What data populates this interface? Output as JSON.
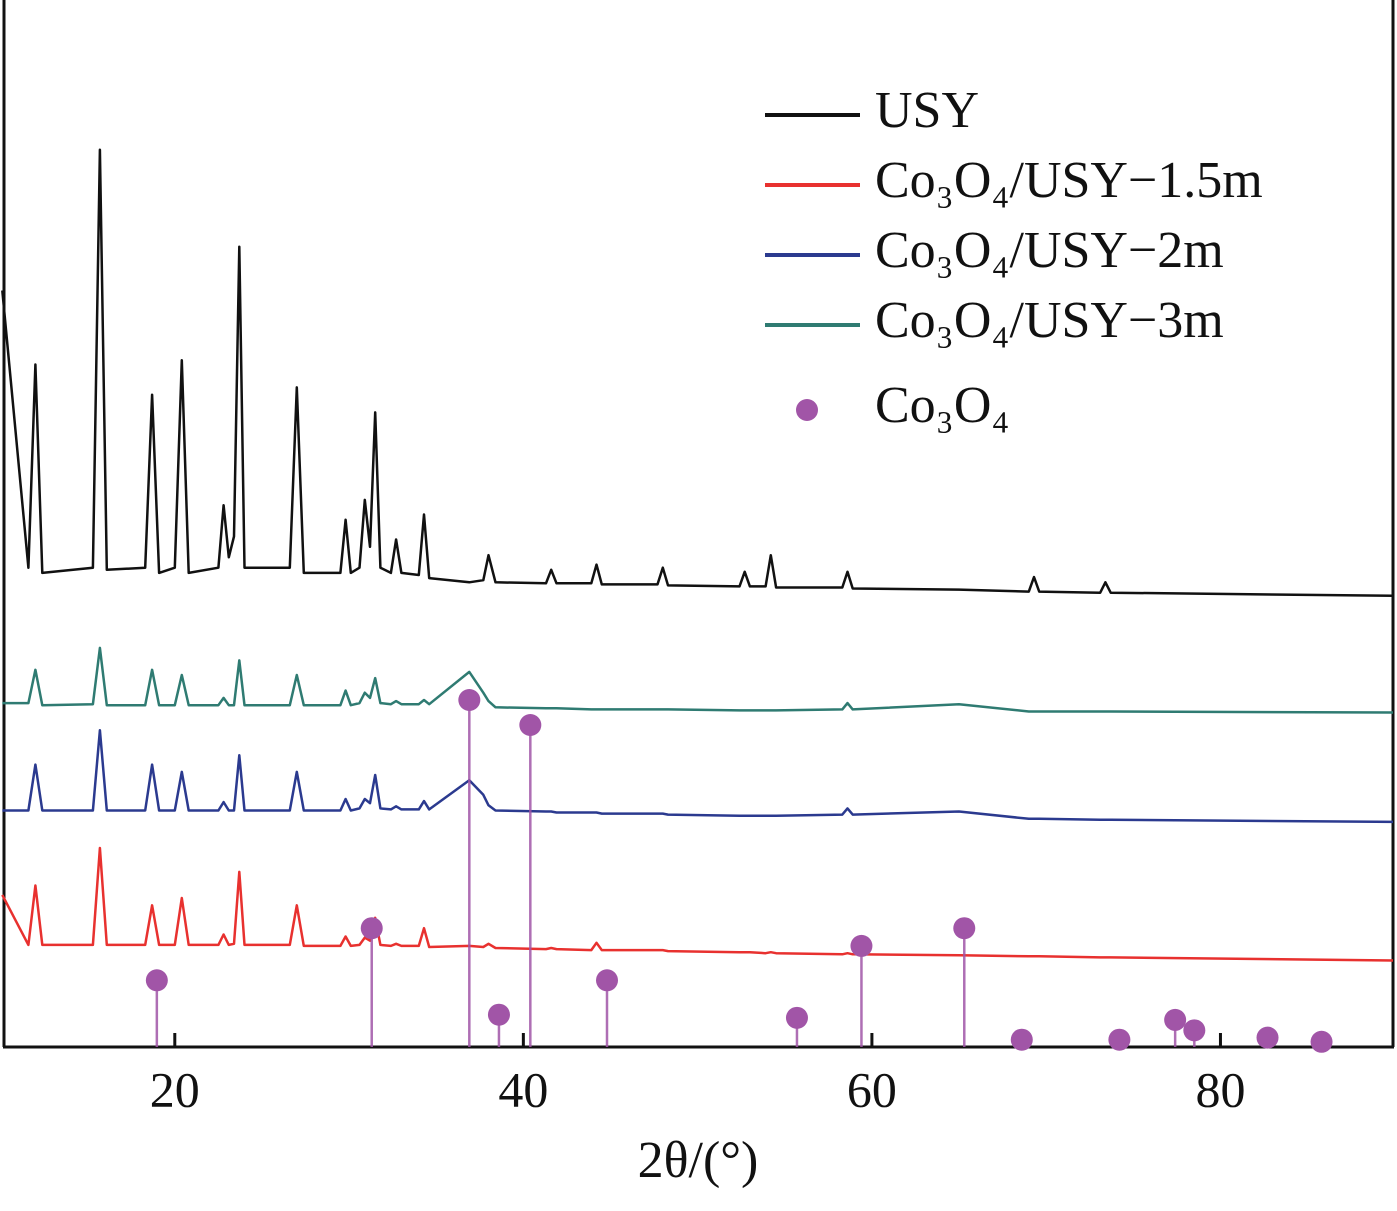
{
  "chart_data": {
    "type": "line",
    "x_label": "2θ/(°)",
    "xlim": [
      10.2,
      89.9
    ],
    "ylim": [
      0,
      100
    ],
    "xticks": [
      20,
      40,
      60,
      80
    ],
    "legend": "top-right",
    "x": [
      10.1,
      11.6,
      12.0,
      12.4,
      15.3,
      15.7,
      16.1,
      18.3,
      18.7,
      19.1,
      20.0,
      20.4,
      20.8,
      22.5,
      22.8,
      23.1,
      23.4,
      23.7,
      24.0,
      26.6,
      27.0,
      27.4,
      29.5,
      29.8,
      30.1,
      30.6,
      30.9,
      31.2,
      31.5,
      31.8,
      32.4,
      32.7,
      33.0,
      34.0,
      34.3,
      34.6,
      36.9,
      37.7,
      38.0,
      38.4,
      41.3,
      41.6,
      41.9,
      43.9,
      44.2,
      44.5,
      47.7,
      48.0,
      48.3,
      52.4,
      52.7,
      53.0,
      53.9,
      54.2,
      54.5,
      58.3,
      58.6,
      58.9,
      65.0,
      69.0,
      69.3,
      69.6,
      73.1,
      73.4,
      73.7,
      89.9
    ],
    "series": [
      {
        "name": "USY",
        "color": "#111111",
        "values": [
          72.6,
          46,
          65.5,
          45.5,
          46,
          86.1,
          45.8,
          46,
          62.6,
          45.5,
          46,
          65.9,
          45.5,
          46,
          52.0,
          47,
          49,
          76.8,
          46,
          46,
          63.3,
          45.5,
          45.5,
          50.6,
          45.5,
          46,
          52.5,
          48,
          60.9,
          46,
          45.5,
          48.7,
          45.5,
          45.3,
          51.1,
          45,
          44.6,
          44.8,
          47.2,
          44.6,
          44.5,
          45.8,
          44.5,
          44.5,
          46.3,
          44.4,
          44.4,
          46.0,
          44.3,
          44.2,
          45.6,
          44.2,
          44.2,
          47.2,
          44.1,
          44.1,
          45.6,
          44.0,
          43.9,
          43.7,
          45.1,
          43.7,
          43.6,
          44.6,
          43.6,
          43.3
        ]
      },
      {
        "name": "Co₃O₄/USY−1.5m",
        "color": "#e8312f",
        "values": [
          14.6,
          9.8,
          15.5,
          9.8,
          9.8,
          19.1,
          9.8,
          9.8,
          13.6,
          9.8,
          9.8,
          14.3,
          9.8,
          9.8,
          10.8,
          9.8,
          9.9,
          16.8,
          9.8,
          9.8,
          13.6,
          9.7,
          9.7,
          10.6,
          9.7,
          9.8,
          10.5,
          10.2,
          12.4,
          9.8,
          9.7,
          9.9,
          9.7,
          9.7,
          11.4,
          9.6,
          9.7,
          9.6,
          9.9,
          9.5,
          9.4,
          9.5,
          9.4,
          9.3,
          10.0,
          9.3,
          9.3,
          9.3,
          9.2,
          9.1,
          9.1,
          9.1,
          9.0,
          9.1,
          9.0,
          8.9,
          9.0,
          8.9,
          8.8,
          8.7,
          8.7,
          8.7,
          8.6,
          8.6,
          8.6,
          8.3
        ]
      },
      {
        "name": "Co₃O₄/USY−2m",
        "color": "#2b3a8f",
        "values": [
          22.7,
          22.7,
          27.1,
          22.7,
          22.7,
          30.4,
          22.7,
          22.7,
          27.1,
          22.7,
          22.7,
          26.4,
          22.7,
          22.7,
          23.5,
          22.7,
          22.7,
          28.0,
          22.7,
          22.7,
          26.4,
          22.7,
          22.7,
          23.8,
          22.7,
          22.9,
          23.8,
          23.4,
          26.1,
          22.9,
          22.8,
          23.1,
          22.8,
          22.8,
          23.6,
          22.8,
          25.6,
          24.2,
          23.2,
          22.7,
          22.6,
          22.6,
          22.5,
          22.5,
          22.5,
          22.4,
          22.4,
          22.4,
          22.3,
          22.2,
          22.2,
          22.2,
          22.2,
          22.2,
          22.2,
          22.3,
          22.9,
          22.3,
          22.6,
          21.9,
          21.9,
          21.9,
          21.8,
          21.8,
          21.8,
          21.6
        ]
      },
      {
        "name": "Co₃O₄/USY−3m",
        "color": "#2f7b72",
        "values": [
          33.0,
          33.0,
          36.2,
          32.8,
          32.9,
          38.3,
          32.8,
          32.8,
          36.2,
          32.8,
          32.8,
          35.7,
          32.8,
          32.8,
          33.5,
          32.8,
          32.8,
          37.1,
          32.8,
          32.8,
          35.7,
          32.8,
          32.8,
          34.2,
          32.8,
          33.0,
          34.0,
          33.5,
          35.4,
          33.0,
          32.9,
          33.2,
          32.9,
          32.9,
          33.3,
          32.9,
          36.0,
          34.0,
          33.2,
          32.6,
          32.5,
          32.5,
          32.5,
          32.4,
          32.4,
          32.4,
          32.4,
          32.4,
          32.4,
          32.3,
          32.3,
          32.3,
          32.3,
          32.3,
          32.3,
          32.4,
          33.0,
          32.4,
          32.9,
          32.2,
          32.2,
          32.2,
          32.2,
          32.2,
          32.2,
          32.1
        ]
      },
      {
        "name": "Co₃O₄",
        "color": "#a155a7",
        "type": "stem",
        "x": [
          18.97,
          31.3,
          36.9,
          38.6,
          40.4,
          44.8,
          55.7,
          59.4,
          65.3,
          68.6,
          74.2,
          77.4,
          78.5,
          82.7,
          85.8
        ],
        "values": [
          6.4,
          11.4,
          33.3,
          3.1,
          30.9,
          6.4,
          2.8,
          9.7,
          11.4,
          0.7,
          0.7,
          2.6,
          1.6,
          0.9,
          0.5
        ]
      }
    ]
  }
}
